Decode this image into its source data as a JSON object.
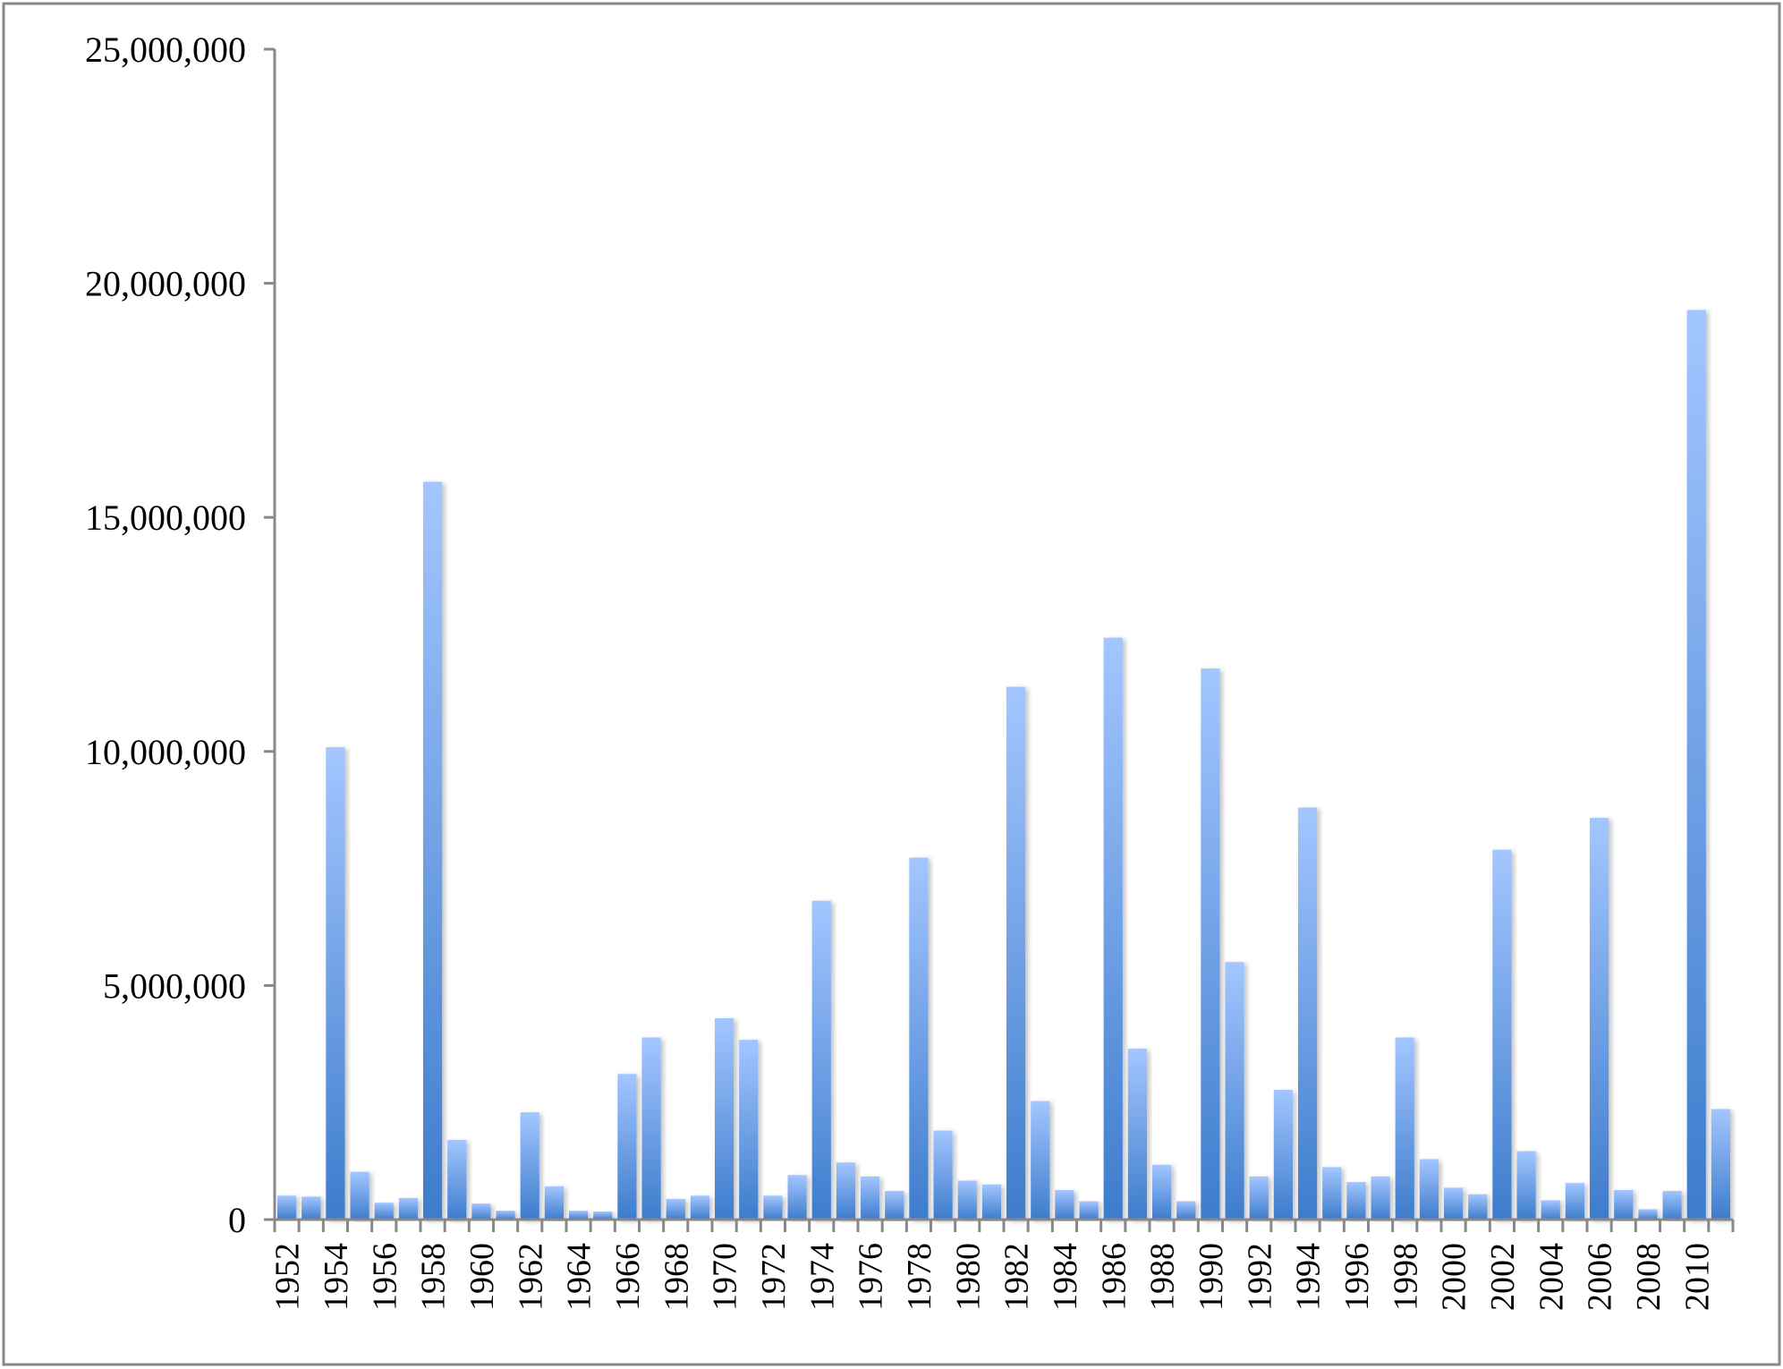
{
  "chart_data": {
    "type": "bar",
    "title": "",
    "xlabel": "",
    "ylabel": "",
    "ylim": [
      0,
      25000000
    ],
    "yticks": [
      0,
      5000000,
      10000000,
      15000000,
      20000000,
      25000000
    ],
    "ytick_labels": [
      "0",
      "5,000,000",
      "10,000,000",
      "15,000,000",
      "20,000,000",
      "25,000,000"
    ],
    "grid": false,
    "legend": "none",
    "bar_color_top": "#a3c6ff",
    "bar_color_bottom": "#3d7ccc",
    "categories": [
      "1952",
      "1953",
      "1954",
      "1955",
      "1956",
      "1957",
      "1958",
      "1959",
      "1960",
      "1961",
      "1962",
      "1963",
      "1964",
      "1965",
      "1966",
      "1967",
      "1968",
      "1969",
      "1970",
      "1971",
      "1972",
      "1973",
      "1974",
      "1975",
      "1976",
      "1977",
      "1978",
      "1979",
      "1980",
      "1981",
      "1982",
      "1983",
      "1984",
      "1985",
      "1986",
      "1987",
      "1988",
      "1989",
      "1990",
      "1991",
      "1992",
      "1993",
      "1994",
      "1995",
      "1996",
      "1997",
      "1998",
      "1999",
      "2000",
      "2001",
      "2002",
      "2003",
      "2004",
      "2005",
      "2006",
      "2007",
      "2008",
      "2009",
      "2010",
      "2011"
    ],
    "xtick_labels_shown": [
      "1952",
      "1954",
      "1956",
      "1958",
      "1960",
      "1962",
      "1964",
      "1966",
      "1968",
      "1970",
      "1972",
      "1974",
      "1976",
      "1978",
      "1980",
      "1982",
      "1984",
      "1986",
      "1988",
      "1990",
      "1992",
      "1994",
      "1996",
      "1998",
      "2000",
      "2002",
      "2004",
      "2006",
      "2008",
      "2010"
    ],
    "values": [
      510000,
      490000,
      10090000,
      1020000,
      360000,
      460000,
      15760000,
      1700000,
      340000,
      190000,
      2290000,
      710000,
      190000,
      170000,
      3110000,
      3890000,
      440000,
      510000,
      4300000,
      3840000,
      510000,
      950000,
      6810000,
      1220000,
      920000,
      610000,
      7730000,
      1900000,
      830000,
      750000,
      11380000,
      2530000,
      630000,
      390000,
      12430000,
      3650000,
      1170000,
      390000,
      11770000,
      5500000,
      920000,
      2770000,
      8800000,
      1120000,
      800000,
      920000,
      3890000,
      1290000,
      680000,
      540000,
      7900000,
      1460000,
      410000,
      780000,
      8580000,
      630000,
      220000,
      610000,
      19430000,
      2360000
    ]
  }
}
